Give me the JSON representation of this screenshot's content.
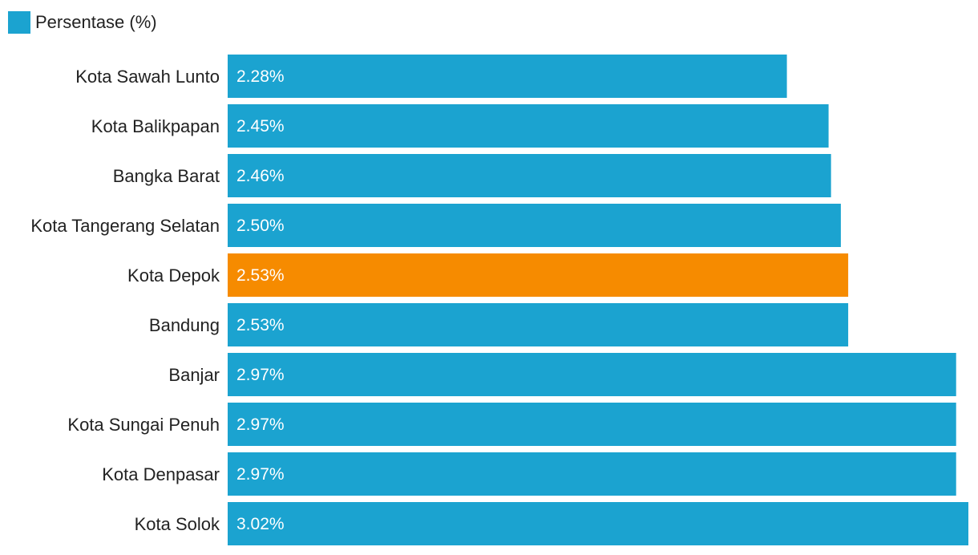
{
  "legend": {
    "label": "Persentase (%)",
    "color": "#1ba3d0"
  },
  "colors": {
    "default": "#1ba3d0",
    "highlight": "#f68b00"
  },
  "chart_data": {
    "type": "bar",
    "orientation": "horizontal",
    "title": "",
    "xlabel": "",
    "ylabel": "",
    "legend_position": "top-left",
    "grid": false,
    "xlim": [
      0,
      3.02
    ],
    "categories": [
      "Kota Sawah Lunto",
      "Kota Balikpapan",
      "Bangka Barat",
      "Kota Tangerang Selatan",
      "Kota Depok",
      "Bandung",
      "Banjar",
      "Kota Sungai Penuh",
      "Kota Denpasar",
      "Kota Solok"
    ],
    "series": [
      {
        "name": "Persentase (%)",
        "values": [
          2.28,
          2.45,
          2.46,
          2.5,
          2.53,
          2.53,
          2.97,
          2.97,
          2.97,
          3.02
        ]
      }
    ],
    "value_labels": [
      "2.28%",
      "2.45%",
      "2.46%",
      "2.50%",
      "2.53%",
      "2.53%",
      "2.97%",
      "2.97%",
      "2.97%",
      "3.02%"
    ],
    "highlight_category": "Kota Depok"
  }
}
